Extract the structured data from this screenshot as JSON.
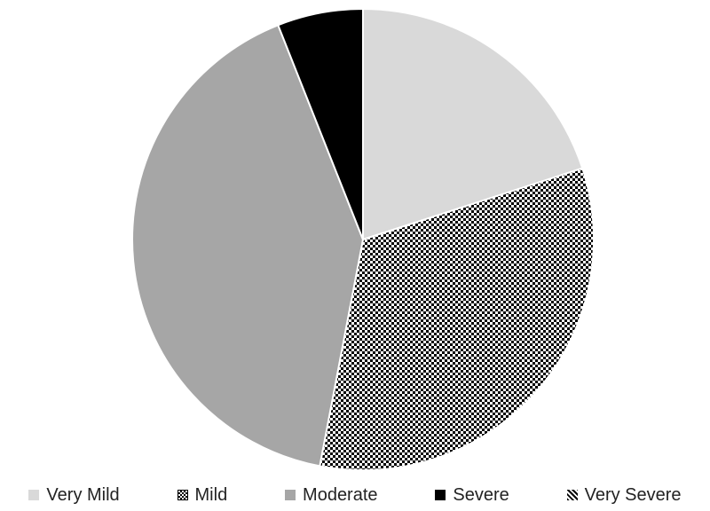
{
  "chart_data": {
    "type": "pie",
    "categories": [
      "Very Mild",
      "Mild",
      "Moderate",
      "Severe",
      "Very Severe"
    ],
    "values": [
      20,
      33,
      41,
      6,
      0
    ],
    "fills": [
      "light-gray",
      "checker",
      "gray",
      "black",
      "diagonal-hatch"
    ],
    "colors": {
      "very_mild": "#d9d9d9",
      "mild_a": "#000000",
      "mild_b": "#ffffff",
      "moderate": "#a6a6a6",
      "severe": "#000000",
      "very_severe": "#000000"
    },
    "legend_position": "bottom"
  }
}
